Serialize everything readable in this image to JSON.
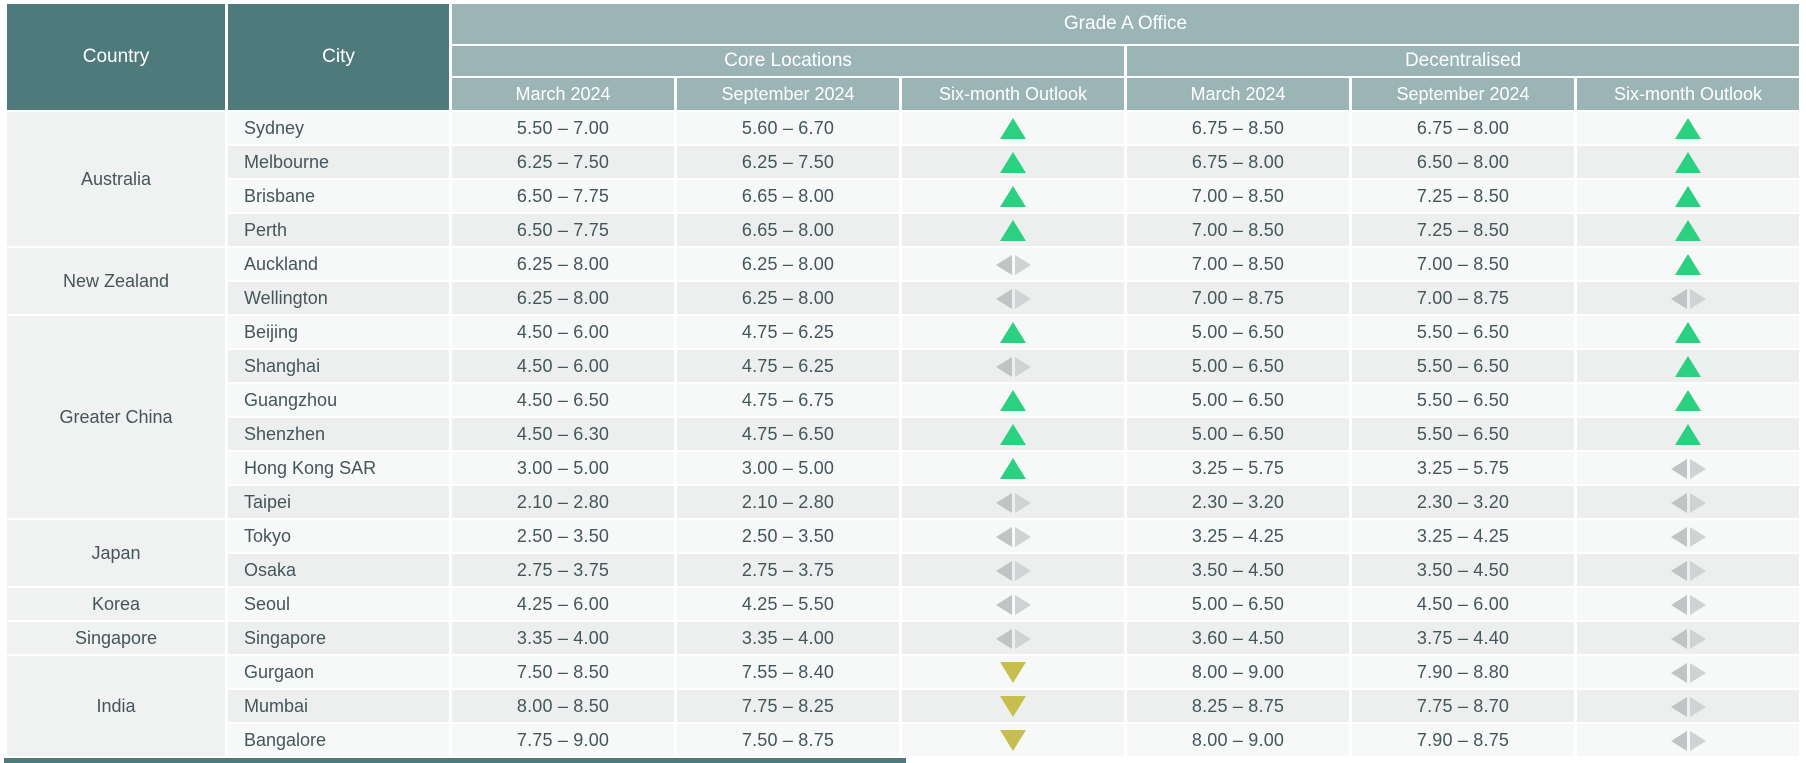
{
  "table": {
    "column_headers": {
      "country": "Country",
      "city": "City",
      "grade_a_office": "Grade A Office",
      "core_locations": "Core Locations",
      "decentralised": "Decentralised",
      "period_columns": [
        "March 2024",
        "September 2024",
        "Six-month Outlook"
      ]
    },
    "groups": [
      {
        "country": "Australia",
        "cities": [
          {
            "city": "Sydney",
            "core": {
              "march": "5.50 – 7.00",
              "september": "5.60 – 6.70",
              "outlook": "up"
            },
            "decentralised": {
              "march": "6.75 – 8.50",
              "september": "6.75 – 8.00",
              "outlook": "up"
            }
          },
          {
            "city": "Melbourne",
            "core": {
              "march": "6.25 – 7.50",
              "september": "6.25 – 7.50",
              "outlook": "up"
            },
            "decentralised": {
              "march": "6.75 – 8.00",
              "september": "6.50 – 8.00",
              "outlook": "up"
            }
          },
          {
            "city": "Brisbane",
            "core": {
              "march": "6.50 – 7.75",
              "september": "6.65 – 8.00",
              "outlook": "up"
            },
            "decentralised": {
              "march": "7.00 – 8.50",
              "september": "7.25 – 8.50",
              "outlook": "up"
            }
          },
          {
            "city": "Perth",
            "core": {
              "march": "6.50 – 7.75",
              "september": "6.65 – 8.00",
              "outlook": "up"
            },
            "decentralised": {
              "march": "7.00 – 8.50",
              "september": "7.25 – 8.50",
              "outlook": "up"
            }
          }
        ]
      },
      {
        "country": "New Zealand",
        "cities": [
          {
            "city": "Auckland",
            "core": {
              "march": "6.25 – 8.00",
              "september": "6.25 – 8.00",
              "outlook": "stable"
            },
            "decentralised": {
              "march": "7.00 – 8.50",
              "september": "7.00 – 8.50",
              "outlook": "up"
            }
          },
          {
            "city": "Wellington",
            "core": {
              "march": "6.25 – 8.00",
              "september": "6.25 – 8.00",
              "outlook": "stable"
            },
            "decentralised": {
              "march": "7.00 – 8.75",
              "september": "7.00 – 8.75",
              "outlook": "stable"
            }
          }
        ]
      },
      {
        "country": "Greater China",
        "cities": [
          {
            "city": "Beijing",
            "core": {
              "march": "4.50 – 6.00",
              "september": "4.75 – 6.25",
              "outlook": "up"
            },
            "decentralised": {
              "march": "5.00 – 6.50",
              "september": "5.50 – 6.50",
              "outlook": "up"
            }
          },
          {
            "city": "Shanghai",
            "core": {
              "march": "4.50 – 6.00",
              "september": "4.75 – 6.25",
              "outlook": "stable"
            },
            "decentralised": {
              "march": "5.00 – 6.50",
              "september": "5.50 – 6.50",
              "outlook": "up"
            }
          },
          {
            "city": "Guangzhou",
            "core": {
              "march": "4.50 – 6.50",
              "september": "4.75 – 6.75",
              "outlook": "up"
            },
            "decentralised": {
              "march": "5.00 – 6.50",
              "september": "5.50 – 6.50",
              "outlook": "up"
            }
          },
          {
            "city": "Shenzhen",
            "core": {
              "march": "4.50 – 6.30",
              "september": "4.75 – 6.50",
              "outlook": "up"
            },
            "decentralised": {
              "march": "5.00 – 6.50",
              "september": "5.50 – 6.50",
              "outlook": "up"
            }
          },
          {
            "city": "Hong Kong SAR",
            "core": {
              "march": "3.00 – 5.00",
              "september": "3.00 – 5.00",
              "outlook": "up"
            },
            "decentralised": {
              "march": "3.25 – 5.75",
              "september": "3.25 – 5.75",
              "outlook": "stable"
            }
          },
          {
            "city": "Taipei",
            "core": {
              "march": "2.10 – 2.80",
              "september": "2.10 – 2.80",
              "outlook": "stable"
            },
            "decentralised": {
              "march": "2.30 – 3.20",
              "september": "2.30 – 3.20",
              "outlook": "stable"
            }
          }
        ]
      },
      {
        "country": "Japan",
        "cities": [
          {
            "city": "Tokyo",
            "core": {
              "march": "2.50 – 3.50",
              "september": "2.50 – 3.50",
              "outlook": "stable"
            },
            "decentralised": {
              "march": "3.25 – 4.25",
              "september": "3.25 – 4.25",
              "outlook": "stable"
            }
          },
          {
            "city": "Osaka",
            "core": {
              "march": "2.75 – 3.75",
              "september": "2.75 – 3.75",
              "outlook": "stable"
            },
            "decentralised": {
              "march": "3.50 – 4.50",
              "september": "3.50 – 4.50",
              "outlook": "stable"
            }
          }
        ]
      },
      {
        "country": "Korea",
        "cities": [
          {
            "city": "Seoul",
            "core": {
              "march": "4.25 – 6.00",
              "september": "4.25 – 5.50",
              "outlook": "stable"
            },
            "decentralised": {
              "march": "5.00 – 6.50",
              "september": "4.50 – 6.00",
              "outlook": "stable"
            }
          }
        ]
      },
      {
        "country": "Singapore",
        "cities": [
          {
            "city": "Singapore",
            "core": {
              "march": "3.35 – 4.00",
              "september": "3.35 – 4.00",
              "outlook": "stable"
            },
            "decentralised": {
              "march": "3.60 – 4.50",
              "september": "3.75 – 4.40",
              "outlook": "stable"
            }
          }
        ]
      },
      {
        "country": "India",
        "cities": [
          {
            "city": "Gurgaon",
            "core": {
              "march": "7.50 – 8.50",
              "september": "7.55 – 8.40",
              "outlook": "down"
            },
            "decentralised": {
              "march": "8.00 – 9.00",
              "september": "7.90 – 8.80",
              "outlook": "stable"
            }
          },
          {
            "city": "Mumbai",
            "core": {
              "march": "8.00 – 8.50",
              "september": "7.75 – 8.25",
              "outlook": "down"
            },
            "decentralised": {
              "march": "8.25 – 8.75",
              "september": "7.75 – 8.70",
              "outlook": "stable"
            }
          },
          {
            "city": "Bangalore",
            "core": {
              "march": "7.75 – 9.00",
              "september": "7.50 – 8.75",
              "outlook": "down"
            },
            "decentralised": {
              "march": "8.00 – 9.00",
              "september": "7.90 – 8.75",
              "outlook": "stable"
            }
          }
        ]
      }
    ]
  },
  "outlook_icon_names": {
    "up": "outlook-up-icon",
    "down": "outlook-down-icon",
    "stable": "outlook-stable-icon"
  },
  "colors": {
    "header_dark_teal": "#4f7a7c",
    "header_light_teal": "#9bb5b6",
    "row_light": "#f7f8f8",
    "row_dark": "#edefef",
    "country_cell_bg": "#f0f1f1",
    "body_text": "#44565a",
    "header_text": "#ffffff",
    "outlook_up_green": "#2bd180",
    "outlook_down_yellow": "#c6bf4f",
    "outlook_stable_gray_left": "#c0c4c4",
    "outlook_stable_gray_right": "#cfd3d3"
  }
}
